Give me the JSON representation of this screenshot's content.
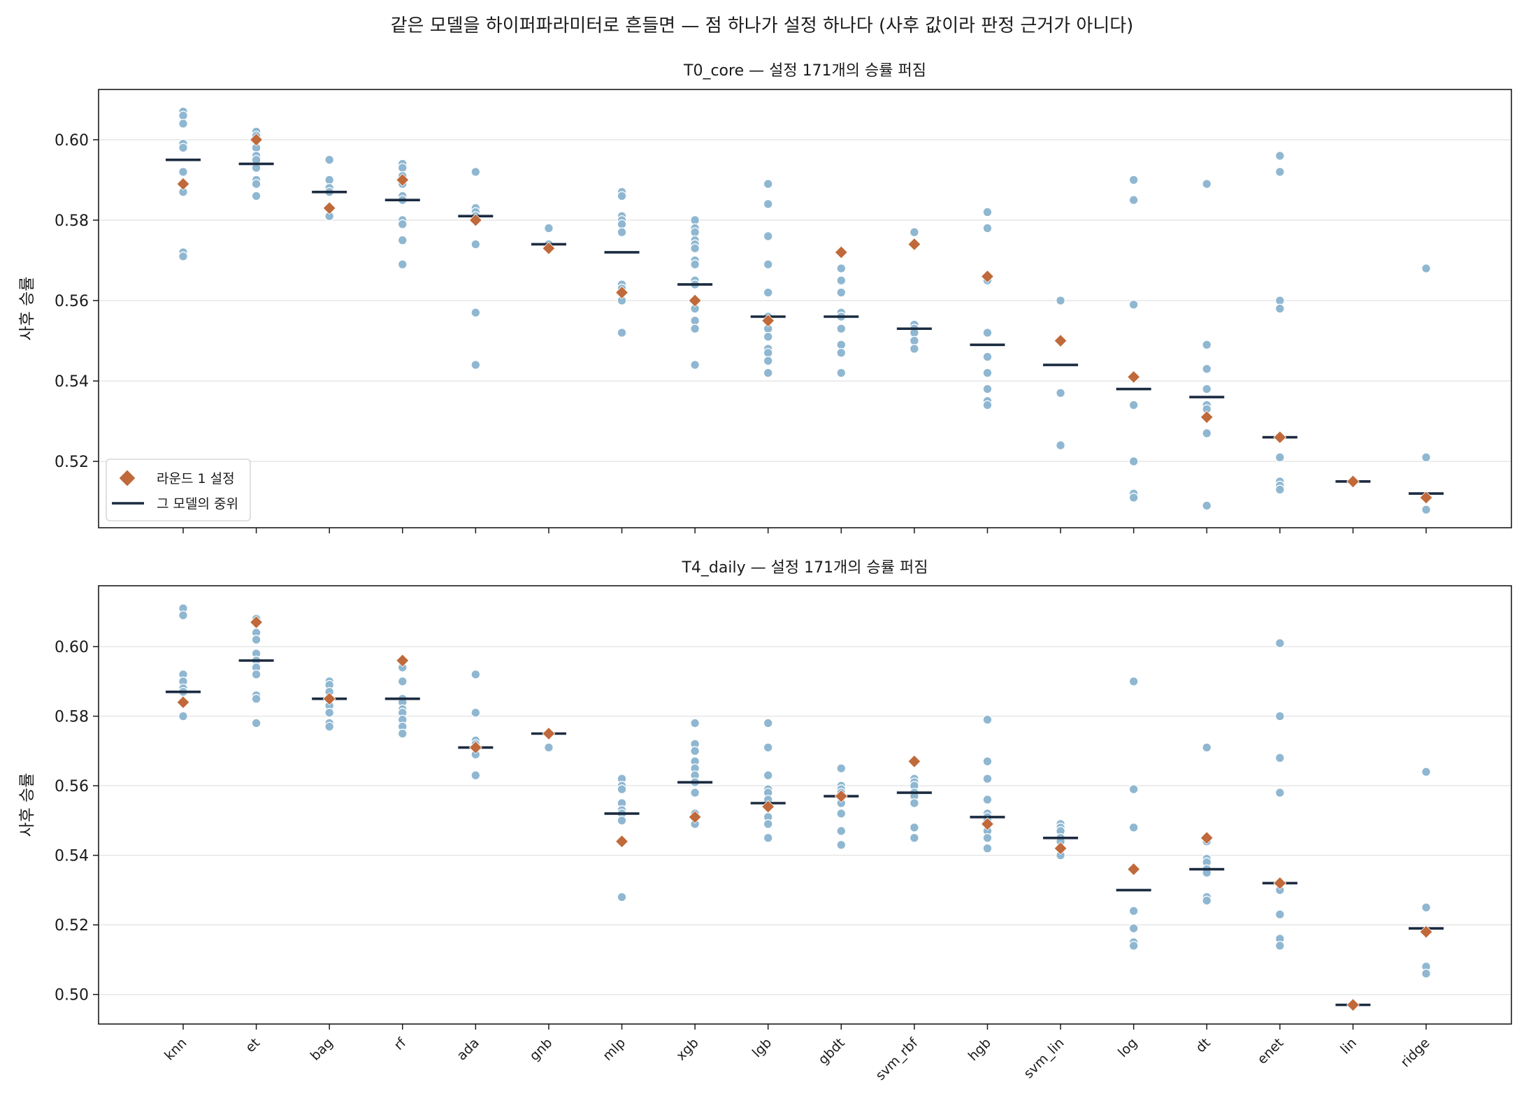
{
  "figure_title": "같은 모델을 하이퍼파라미터로 흔들면 — 점 하나가 설정 하나다 (사후 값이라 판정 근거가 아니다)",
  "colors": {
    "point": "#8fb7d1",
    "round1": "#c0693a",
    "median": "#1b2b40",
    "grid": "#e6e6e6",
    "axis": "#1a1a1a"
  },
  "legend": {
    "round1_label": "라운드 1 설정",
    "median_label": "그 모델의 중위"
  },
  "chart_data": [
    {
      "type": "scatter",
      "title": "T0_core — 설정 171개의 승률 퍼짐",
      "ylabel": "사후 승률",
      "xlabel": "",
      "ylim": [
        0.5035,
        0.6125
      ],
      "yticks": [
        0.52,
        0.54,
        0.56,
        0.58,
        0.6
      ],
      "grid": true,
      "legend_position": "lower-left",
      "categories": [
        "knn",
        "et",
        "bag",
        "rf",
        "ada",
        "gnb",
        "mlp",
        "xgb",
        "lgb",
        "gbdt",
        "svm_rbf",
        "hgb",
        "svm_lin",
        "log",
        "dt",
        "enet",
        "lin",
        "ridge"
      ],
      "points": [
        [
          0.607,
          0.606,
          0.604,
          0.599,
          0.598,
          0.592,
          0.587,
          0.572,
          0.571
        ],
        [
          0.602,
          0.601,
          0.598,
          0.596,
          0.595,
          0.593,
          0.59,
          0.589,
          0.586
        ],
        [
          0.595,
          0.59,
          0.588,
          0.587,
          0.583,
          0.581
        ],
        [
          0.594,
          0.593,
          0.591,
          0.589,
          0.586,
          0.585,
          0.58,
          0.579,
          0.575,
          0.569
        ],
        [
          0.592,
          0.583,
          0.582,
          0.581,
          0.58,
          0.574,
          0.557,
          0.544
        ],
        [
          0.578,
          0.574
        ],
        [
          0.587,
          0.586,
          0.581,
          0.58,
          0.579,
          0.577,
          0.564,
          0.563,
          0.562,
          0.56,
          0.552
        ],
        [
          0.58,
          0.578,
          0.577,
          0.575,
          0.574,
          0.573,
          0.57,
          0.569,
          0.565,
          0.564,
          0.56,
          0.558,
          0.555,
          0.553,
          0.544
        ],
        [
          0.589,
          0.584,
          0.576,
          0.569,
          0.562,
          0.556,
          0.555,
          0.553,
          0.551,
          0.548,
          0.547,
          0.545,
          0.542
        ],
        [
          0.568,
          0.565,
          0.562,
          0.557,
          0.556,
          0.553,
          0.549,
          0.547,
          0.542
        ],
        [
          0.577,
          0.554,
          0.553,
          0.552,
          0.55,
          0.548
        ],
        [
          0.582,
          0.578,
          0.565,
          0.552,
          0.546,
          0.542,
          0.538,
          0.535,
          0.534
        ],
        [
          0.56,
          0.537,
          0.524
        ],
        [
          0.59,
          0.585,
          0.559,
          0.534,
          0.52,
          0.512,
          0.511
        ],
        [
          0.589,
          0.549,
          0.543,
          0.538,
          0.534,
          0.533,
          0.527,
          0.509
        ],
        [
          0.596,
          0.592,
          0.56,
          0.558,
          0.521,
          0.515,
          0.514,
          0.513
        ],
        [
          0.515
        ],
        [
          0.568,
          0.521,
          0.508
        ]
      ],
      "round1": [
        0.589,
        0.6,
        0.583,
        0.59,
        0.58,
        0.573,
        0.562,
        0.56,
        0.555,
        0.572,
        0.574,
        0.566,
        0.55,
        0.541,
        0.531,
        0.526,
        0.515,
        0.511
      ],
      "median": [
        0.595,
        0.594,
        0.587,
        0.585,
        0.581,
        0.574,
        0.572,
        0.564,
        0.556,
        0.556,
        0.553,
        0.549,
        0.544,
        0.538,
        0.536,
        0.526,
        0.515,
        0.512
      ]
    },
    {
      "type": "scatter",
      "title": "T4_daily — 설정 171개의 승률 퍼짐",
      "ylabel": "사후 승률",
      "xlabel": "",
      "ylim": [
        0.4915,
        0.6175
      ],
      "yticks": [
        0.5,
        0.52,
        0.54,
        0.56,
        0.58,
        0.6
      ],
      "grid": true,
      "categories": [
        "knn",
        "et",
        "bag",
        "rf",
        "ada",
        "gnb",
        "mlp",
        "xgb",
        "lgb",
        "gbdt",
        "svm_rbf",
        "hgb",
        "svm_lin",
        "log",
        "dt",
        "enet",
        "lin",
        "ridge"
      ],
      "points": [
        [
          0.611,
          0.609,
          0.592,
          0.59,
          0.588,
          0.587,
          0.584,
          0.58
        ],
        [
          0.608,
          0.607,
          0.604,
          0.602,
          0.598,
          0.596,
          0.594,
          0.592,
          0.586,
          0.585,
          0.578
        ],
        [
          0.59,
          0.589,
          0.587,
          0.585,
          0.583,
          0.581,
          0.578,
          0.577
        ],
        [
          0.594,
          0.59,
          0.585,
          0.584,
          0.582,
          0.581,
          0.579,
          0.577,
          0.575
        ],
        [
          0.592,
          0.581,
          0.573,
          0.572,
          0.571,
          0.569,
          0.563
        ],
        [
          0.575,
          0.571
        ],
        [
          0.562,
          0.56,
          0.559,
          0.555,
          0.553,
          0.552,
          0.55,
          0.544,
          0.528
        ],
        [
          0.578,
          0.572,
          0.57,
          0.567,
          0.565,
          0.563,
          0.561,
          0.558,
          0.552,
          0.549
        ],
        [
          0.578,
          0.571,
          0.563,
          0.559,
          0.558,
          0.556,
          0.554,
          0.551,
          0.549,
          0.545
        ],
        [
          0.565,
          0.56,
          0.559,
          0.558,
          0.557,
          0.555,
          0.552,
          0.547,
          0.543
        ],
        [
          0.562,
          0.561,
          0.56,
          0.558,
          0.557,
          0.555,
          0.548,
          0.545
        ],
        [
          0.579,
          0.567,
          0.562,
          0.556,
          0.552,
          0.551,
          0.55,
          0.547,
          0.545,
          0.542
        ],
        [
          0.549,
          0.548,
          0.547,
          0.545,
          0.544,
          0.54
        ],
        [
          0.59,
          0.559,
          0.548,
          0.524,
          0.519,
          0.515,
          0.514
        ],
        [
          0.571,
          0.544,
          0.539,
          0.538,
          0.536,
          0.535,
          0.528,
          0.527
        ],
        [
          0.601,
          0.58,
          0.568,
          0.558,
          0.532,
          0.53,
          0.523,
          0.516,
          0.514
        ],
        [
          0.497
        ],
        [
          0.564,
          0.525,
          0.518,
          0.508,
          0.506
        ]
      ],
      "round1": [
        0.584,
        0.607,
        0.585,
        0.596,
        0.571,
        0.575,
        0.544,
        0.551,
        0.554,
        0.557,
        0.567,
        0.549,
        0.542,
        0.536,
        0.545,
        0.532,
        0.497,
        0.518
      ],
      "median": [
        0.587,
        0.596,
        0.585,
        0.585,
        0.571,
        0.575,
        0.552,
        0.561,
        0.555,
        0.557,
        0.558,
        0.551,
        0.545,
        0.53,
        0.536,
        0.532,
        0.497,
        0.519
      ]
    }
  ]
}
